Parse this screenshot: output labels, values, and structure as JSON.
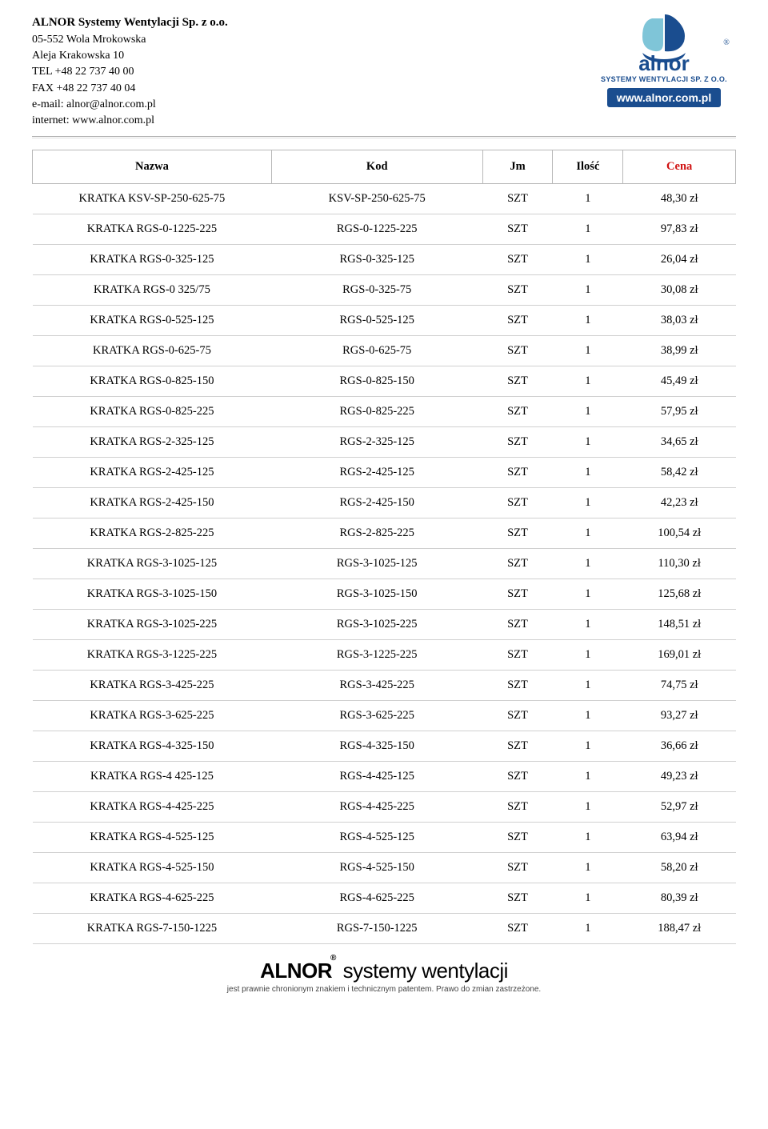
{
  "company": {
    "name": "ALNOR Systemy Wentylacji Sp. z o.o.",
    "addr1": "05-552 Wola Mrokowska",
    "addr2": "Aleja Krakowska 10",
    "tel": "TEL +48 22 737 40 00",
    "fax": "FAX +48 22 737 40 04",
    "email": "e-mail: alnor@alnor.com.pl",
    "web": "internet: www.alnor.com.pl"
  },
  "logo": {
    "word": "alnor",
    "subtitle": "SYSTEMY WENTYLACJI SP. Z O.O.",
    "url": "www.alnor.com.pl",
    "color_primary": "#1a4d8f",
    "color_accent": "#7fc5d8",
    "reg": "®"
  },
  "table": {
    "headers": {
      "nazwa": "Nazwa",
      "kod": "Kod",
      "jm": "Jm",
      "ilosc": "Ilość",
      "cena": "Cena"
    },
    "header_colors": {
      "cena": "#d01212",
      "default": "#000000"
    },
    "border_color": "#d0d0d0",
    "rows": [
      {
        "nazwa": "KRATKA KSV-SP-250-625-75",
        "kod": "KSV-SP-250-625-75",
        "jm": "SZT",
        "ilosc": "1",
        "cena": "48,30 zł"
      },
      {
        "nazwa": "KRATKA RGS-0-1225-225",
        "kod": "RGS-0-1225-225",
        "jm": "SZT",
        "ilosc": "1",
        "cena": "97,83 zł"
      },
      {
        "nazwa": "KRATKA RGS-0-325-125",
        "kod": "RGS-0-325-125",
        "jm": "SZT",
        "ilosc": "1",
        "cena": "26,04 zł"
      },
      {
        "nazwa": "KRATKA RGS-0 325/75",
        "kod": "RGS-0-325-75",
        "jm": "SZT",
        "ilosc": "1",
        "cena": "30,08 zł"
      },
      {
        "nazwa": "KRATKA RGS-0-525-125",
        "kod": "RGS-0-525-125",
        "jm": "SZT",
        "ilosc": "1",
        "cena": "38,03 zł"
      },
      {
        "nazwa": "KRATKA RGS-0-625-75",
        "kod": "RGS-0-625-75",
        "jm": "SZT",
        "ilosc": "1",
        "cena": "38,99 zł"
      },
      {
        "nazwa": "KRATKA RGS-0-825-150",
        "kod": "RGS-0-825-150",
        "jm": "SZT",
        "ilosc": "1",
        "cena": "45,49 zł"
      },
      {
        "nazwa": "KRATKA RGS-0-825-225",
        "kod": "RGS-0-825-225",
        "jm": "SZT",
        "ilosc": "1",
        "cena": "57,95 zł"
      },
      {
        "nazwa": "KRATKA RGS-2-325-125",
        "kod": "RGS-2-325-125",
        "jm": "SZT",
        "ilosc": "1",
        "cena": "34,65 zł"
      },
      {
        "nazwa": "KRATKA RGS-2-425-125",
        "kod": "RGS-2-425-125",
        "jm": "SZT",
        "ilosc": "1",
        "cena": "58,42 zł"
      },
      {
        "nazwa": "KRATKA RGS-2-425-150",
        "kod": "RGS-2-425-150",
        "jm": "SZT",
        "ilosc": "1",
        "cena": "42,23 zł"
      },
      {
        "nazwa": "KRATKA RGS-2-825-225",
        "kod": "RGS-2-825-225",
        "jm": "SZT",
        "ilosc": "1",
        "cena": "100,54 zł"
      },
      {
        "nazwa": "KRATKA RGS-3-1025-125",
        "kod": "RGS-3-1025-125",
        "jm": "SZT",
        "ilosc": "1",
        "cena": "110,30 zł"
      },
      {
        "nazwa": "KRATKA RGS-3-1025-150",
        "kod": "RGS-3-1025-150",
        "jm": "SZT",
        "ilosc": "1",
        "cena": "125,68 zł"
      },
      {
        "nazwa": "KRATKA RGS-3-1025-225",
        "kod": "RGS-3-1025-225",
        "jm": "SZT",
        "ilosc": "1",
        "cena": "148,51 zł"
      },
      {
        "nazwa": "KRATKA RGS-3-1225-225",
        "kod": "RGS-3-1225-225",
        "jm": "SZT",
        "ilosc": "1",
        "cena": "169,01 zł"
      },
      {
        "nazwa": "KRATKA RGS-3-425-225",
        "kod": "RGS-3-425-225",
        "jm": "SZT",
        "ilosc": "1",
        "cena": "74,75 zł"
      },
      {
        "nazwa": "KRATKA RGS-3-625-225",
        "kod": "RGS-3-625-225",
        "jm": "SZT",
        "ilosc": "1",
        "cena": "93,27 zł"
      },
      {
        "nazwa": "KRATKA RGS-4-325-150",
        "kod": "RGS-4-325-150",
        "jm": "SZT",
        "ilosc": "1",
        "cena": "36,66 zł"
      },
      {
        "nazwa": "KRATKA RGS-4 425-125",
        "kod": "RGS-4-425-125",
        "jm": "SZT",
        "ilosc": "1",
        "cena": "49,23 zł"
      },
      {
        "nazwa": "KRATKA RGS-4-425-225",
        "kod": "RGS-4-425-225",
        "jm": "SZT",
        "ilosc": "1",
        "cena": "52,97 zł"
      },
      {
        "nazwa": "KRATKA RGS-4-525-125",
        "kod": "RGS-4-525-125",
        "jm": "SZT",
        "ilosc": "1",
        "cena": "63,94 zł"
      },
      {
        "nazwa": "KRATKA RGS-4-525-150",
        "kod": "RGS-4-525-150",
        "jm": "SZT",
        "ilosc": "1",
        "cena": "58,20 zł"
      },
      {
        "nazwa": "KRATKA RGS-4-625-225",
        "kod": "RGS-4-625-225",
        "jm": "SZT",
        "ilosc": "1",
        "cena": "80,39 zł"
      },
      {
        "nazwa": "KRATKA RGS-7-150-1225",
        "kod": "RGS-7-150-1225",
        "jm": "SZT",
        "ilosc": "1",
        "cena": "188,47 zł"
      }
    ]
  },
  "footer": {
    "brand_bold": "ALNOR",
    "brand_light": " systemy wentylacji",
    "reg": "®",
    "sub": "jest prawnie chronionym znakiem i technicznym patentem. Prawo do zmian zastrzeżone."
  }
}
